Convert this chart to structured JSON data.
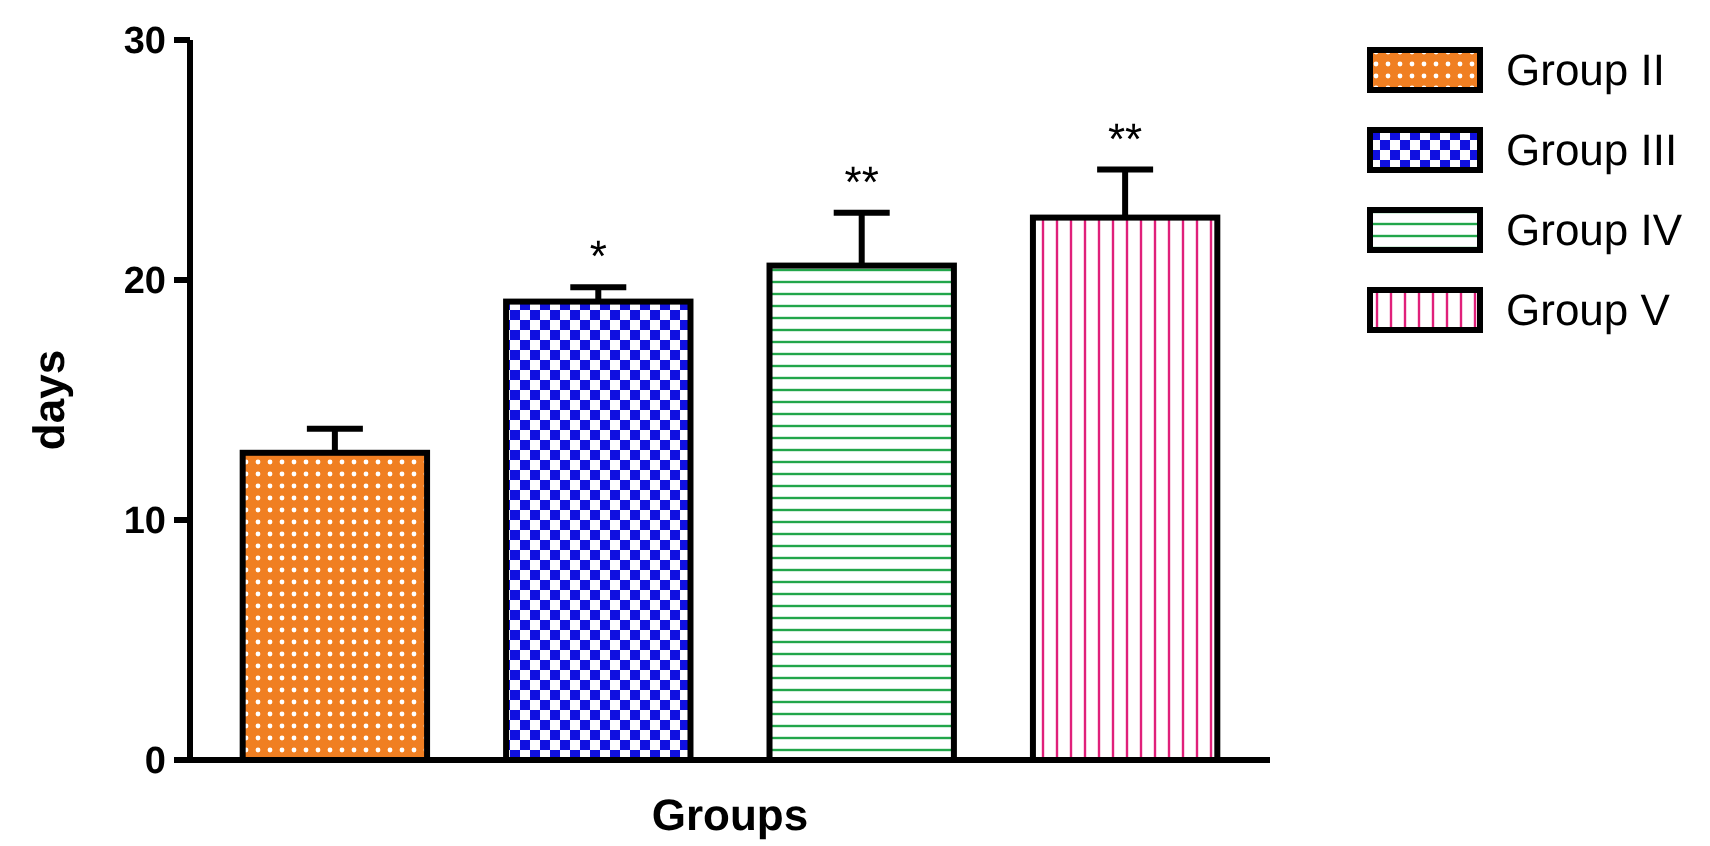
{
  "chart_data": {
    "type": "bar",
    "xlabel": "Groups",
    "ylabel": "days",
    "categories": [
      null,
      null,
      null,
      null
    ],
    "series": [
      {
        "name": "Group II",
        "color": "#f07f22",
        "values": [
          12.8,
          null,
          null,
          null
        ],
        "errors": [
          1.0,
          null,
          null,
          null
        ]
      },
      {
        "name": "Group III",
        "color": "#1010e0",
        "values": [
          null,
          19.1,
          null,
          null
        ],
        "errors": [
          null,
          0.6,
          null,
          null
        ]
      },
      {
        "name": "Group IV",
        "color": "#22a64a",
        "values": [
          null,
          null,
          20.6,
          null
        ],
        "errors": [
          null,
          null,
          2.2,
          null
        ]
      },
      {
        "name": "Group V",
        "color": "#e0207a",
        "values": [
          null,
          null,
          null,
          22.6
        ],
        "errors": [
          null,
          null,
          null,
          2.0
        ]
      }
    ],
    "annotations": [
      "*",
      "**",
      "**"
    ],
    "ylim": [
      0,
      30
    ],
    "yticks": [
      0,
      10,
      20,
      30
    ],
    "grid": false,
    "legend": "right",
    "tick_labels": "y"
  }
}
